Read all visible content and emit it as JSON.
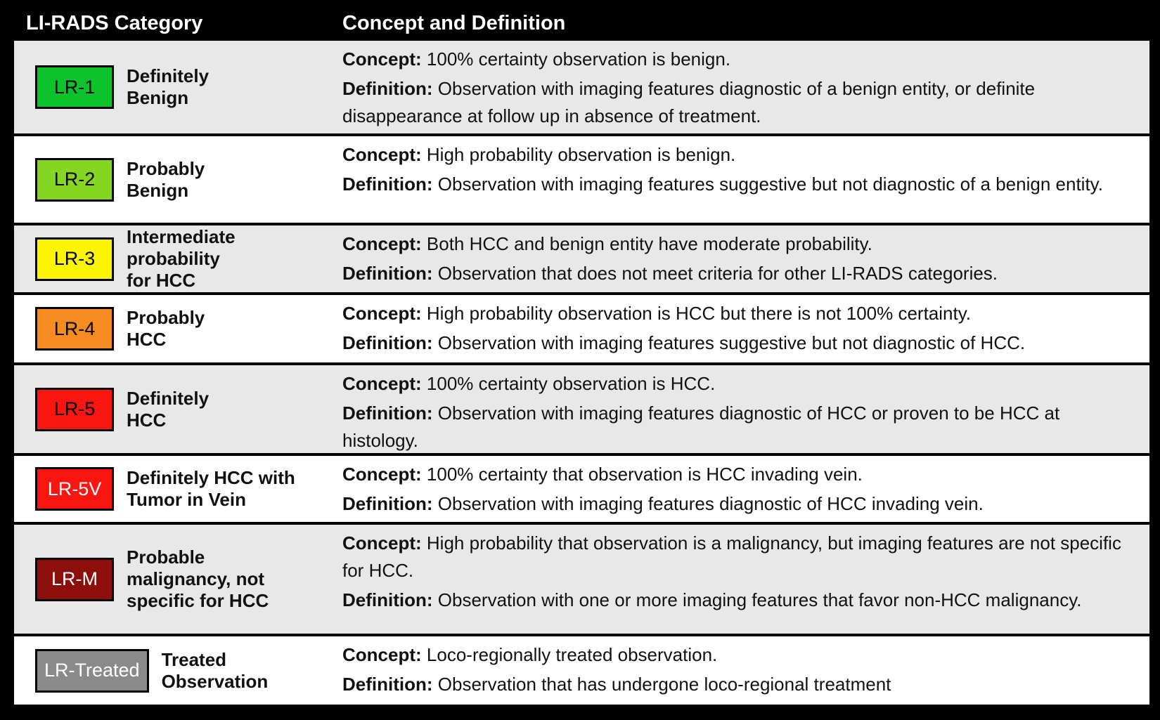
{
  "table": {
    "header": {
      "category_col": "LI-RADS Category",
      "concept_col": "Concept and Definition"
    },
    "concept_prefix": "Concept:",
    "definition_prefix": "Definition:",
    "colors": {
      "row_alt_gray": "#e8e8e8",
      "row_white": "#ffffff",
      "frame_black": "#000000"
    },
    "rows": [
      {
        "code": "LR-1",
        "badge_color": "#0dc32b",
        "badge_text_color": "#000000",
        "label": "Definitely\nBenign",
        "concept": "100% certainty observation is benign.",
        "definition": "Observation with imaging features diagnostic of a benign entity, or definite disappearance at follow up in absence of treatment."
      },
      {
        "code": "LR-2",
        "badge_color": "#85d622",
        "badge_text_color": "#000000",
        "label": "Probably\nBenign",
        "concept": "High probability observation is benign.",
        "definition": "Observation with imaging features suggestive but not diagnostic of a benign entity."
      },
      {
        "code": "LR-3",
        "badge_color": "#fbf600",
        "badge_text_color": "#000000",
        "label": "Intermediate\nprobability\nfor HCC",
        "concept": "Both HCC and benign entity have moderate probability.",
        "definition": "Observation that does not meet criteria for other LI-RADS categories."
      },
      {
        "code": "LR-4",
        "badge_color": "#f68b1f",
        "badge_text_color": "#000000",
        "label": "Probably\nHCC",
        "concept": "High probability observation is HCC but there is not 100% certainty.",
        "definition": "Observation with imaging features suggestive but not diagnostic of HCC."
      },
      {
        "code": "LR-5",
        "badge_color": "#fa1510",
        "badge_text_color": "#000000",
        "label": "Definitely\nHCC",
        "concept": "100% certainty observation is HCC.",
        "definition": "Observation with imaging features diagnostic of HCC or proven to be HCC at histology."
      },
      {
        "code": "LR-5V",
        "badge_color": "#fa1510",
        "badge_text_color": "#ffffff",
        "label": "Definitely HCC with\nTumor in Vein",
        "concept": "100% certainty that observation is HCC invading vein.",
        "definition": "Observation with imaging features diagnostic of HCC invading vein."
      },
      {
        "code": "LR-M",
        "badge_color": "#8c0f0c",
        "badge_text_color": "#ffffff",
        "label": "Probable\nmalignancy, not\nspecific for HCC",
        "concept": "High probability that observation is a malignancy, but imaging features are not specific for HCC.",
        "definition": "Observation with one or more imaging features that favor non-HCC malignancy."
      },
      {
        "code": "LR-Treated",
        "badge_color": "#8a8a8a",
        "badge_text_color": "#ffffff",
        "label": "Treated\nObservation",
        "concept": "Loco-regionally treated observation.",
        "definition": "Observation that has undergone loco-regional treatment"
      }
    ]
  }
}
